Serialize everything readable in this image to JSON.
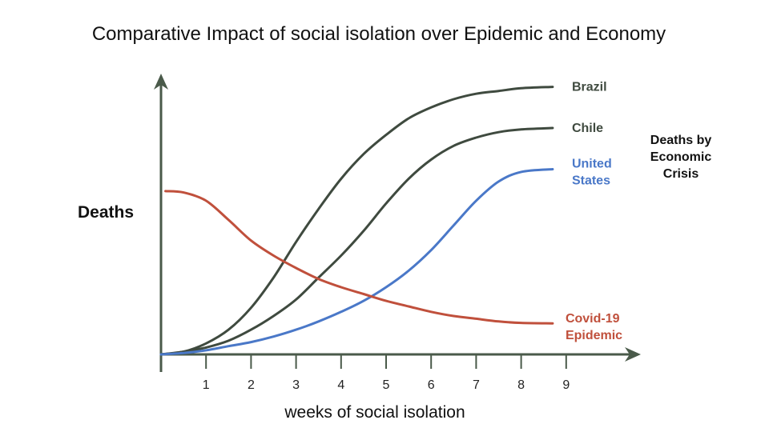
{
  "chart_data": {
    "type": "line",
    "title": "Comparative Impact of social isolation over Epidemic and Economy",
    "xlabel": "weeks of social isolation",
    "ylabel": "Deaths",
    "annotation": [
      "Deaths by",
      "Economic",
      "Crisis"
    ],
    "x_ticks": [
      "1",
      "2",
      "3",
      "4",
      "5",
      "6",
      "7",
      "8",
      "9"
    ],
    "xlim": [
      0,
      10.5
    ],
    "ylim": [
      0,
      100
    ],
    "grid": false,
    "colors": {
      "axis": "#4a5a4a",
      "dark_series": "#3f4a3f",
      "us": "#4a78c8",
      "covid": "#c0503c"
    },
    "series": [
      {
        "name": "Brazil",
        "label_lines": [
          "Brazil"
        ],
        "color": "#3f4a3f",
        "x": [
          0,
          0.5,
          1,
          1.5,
          2,
          2.5,
          3,
          3.5,
          4,
          4.5,
          5,
          5.5,
          6,
          6.5,
          7,
          7.5,
          8,
          8.7
        ],
        "y": [
          0,
          1,
          4,
          9,
          17,
          28,
          41,
          53,
          64,
          73,
          80,
          86,
          90,
          93,
          95,
          96,
          97,
          97.5
        ]
      },
      {
        "name": "Chile",
        "label_lines": [
          "Chile"
        ],
        "color": "#3f4a3f",
        "x": [
          0,
          0.5,
          1,
          1.5,
          2,
          2.5,
          3,
          3.5,
          4,
          4.5,
          5,
          5.5,
          6,
          6.5,
          7,
          7.5,
          8,
          8.7
        ],
        "y": [
          0,
          1,
          2.5,
          5,
          9,
          14,
          20,
          28,
          36,
          45,
          55,
          64,
          71,
          76,
          79,
          81,
          82,
          82.5
        ]
      },
      {
        "name": "United States",
        "label_lines": [
          "United",
          "States"
        ],
        "color": "#4a78c8",
        "x": [
          0,
          0.5,
          1,
          1.5,
          2,
          2.5,
          3,
          3.5,
          4,
          4.5,
          5,
          5.5,
          6,
          6.5,
          7,
          7.5,
          8,
          8.7
        ],
        "y": [
          0,
          0.5,
          1.5,
          3,
          4.5,
          6.5,
          9,
          12,
          15.5,
          19.5,
          24.5,
          30.5,
          38,
          47,
          56,
          63,
          66.5,
          67.5
        ]
      },
      {
        "name": "Covid-19 Epidemic",
        "label_lines": [
          "Covid-19",
          "Epidemic"
        ],
        "color": "#c0503c",
        "x": [
          0.1,
          0.5,
          1,
          1.5,
          2,
          2.5,
          3,
          3.5,
          4,
          4.5,
          5,
          5.5,
          6,
          6.5,
          7,
          7.5,
          8,
          8.7
        ],
        "y": [
          59.5,
          59,
          56,
          49,
          41.5,
          36,
          31.5,
          27.5,
          24.5,
          22,
          19.5,
          17.5,
          15.5,
          14,
          13,
          12,
          11.5,
          11.3
        ]
      }
    ]
  }
}
